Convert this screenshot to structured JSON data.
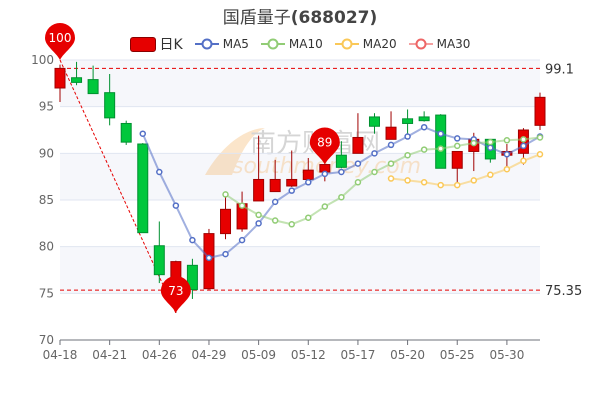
{
  "chart_data": {
    "type": "candlestick",
    "title": "国盾量子",
    "title_code": "(688027)",
    "legend": [
      {
        "name": "日K",
        "color": "#e60000"
      },
      {
        "name": "MA5",
        "color": "#5470c6"
      },
      {
        "name": "MA10",
        "color": "#91cc75"
      },
      {
        "name": "MA20",
        "color": "#fac858"
      },
      {
        "name": "MA30",
        "color": "#ee6666"
      }
    ],
    "legend_position": "top",
    "ylim": [
      70,
      100
    ],
    "yticks": [
      "70",
      "75",
      "80",
      "85",
      "90",
      "95",
      "100"
    ],
    "grid": true,
    "x_tick_labels": [
      "04-18",
      "04-21",
      "04-26",
      "04-29",
      "05-09",
      "05-12",
      "05-17",
      "05-20",
      "05-25",
      "05-30"
    ],
    "x_tick_indices": [
      0,
      3,
      6,
      9,
      12,
      15,
      18,
      21,
      24,
      27
    ],
    "up_color": "#e60000",
    "down_color": "#00c73c",
    "ohlc": [
      [
        97.0,
        99.1,
        95.5,
        99.5
      ],
      [
        98.1,
        97.6,
        97.3,
        99.8
      ],
      [
        97.9,
        96.4,
        96.4,
        99.4
      ],
      [
        96.5,
        93.8,
        93.0,
        98.5
      ],
      [
        93.2,
        91.2,
        90.9,
        93.5
      ],
      [
        91.0,
        81.5,
        81.5,
        91.1
      ],
      [
        80.1,
        77.0,
        76.1,
        82.7
      ],
      [
        76.0,
        78.4,
        72.9,
        78.5
      ],
      [
        78.0,
        75.4,
        74.4,
        78.7
      ],
      [
        75.5,
        81.4,
        75.4,
        81.9
      ],
      [
        81.4,
        84.0,
        80.8,
        85.4
      ],
      [
        81.9,
        84.6,
        81.6,
        85.9
      ],
      [
        84.9,
        87.2,
        84.9,
        91.9
      ],
      [
        85.9,
        87.2,
        85.9,
        89.3
      ],
      [
        86.5,
        87.2,
        86.4,
        90.3
      ],
      [
        87.2,
        88.2,
        87.1,
        89.5
      ],
      [
        88.0,
        88.8,
        87.0,
        88.9
      ],
      [
        89.8,
        88.5,
        88.4,
        91.3
      ],
      [
        90.0,
        91.7,
        90.0,
        94.3
      ],
      [
        93.9,
        92.9,
        92.1,
        94.3
      ],
      [
        91.5,
        92.8,
        91.5,
        94.5
      ],
      [
        93.7,
        93.2,
        92.1,
        94.7
      ],
      [
        93.9,
        93.5,
        93.4,
        94.5
      ],
      [
        94.1,
        88.4,
        88.4,
        94.2
      ],
      [
        88.4,
        90.2,
        86.9,
        90.2
      ],
      [
        90.2,
        91.5,
        88.1,
        92.2
      ],
      [
        91.5,
        89.4,
        89.0,
        91.5
      ],
      [
        89.8,
        90.2,
        88.6,
        91.0
      ],
      [
        90.0,
        92.5,
        88.8,
        92.7
      ],
      [
        93.0,
        96.0,
        92.5,
        96.5
      ]
    ],
    "ma5": [
      null,
      null,
      null,
      null,
      null,
      92.1,
      88.0,
      84.4,
      80.7,
      78.8,
      79.2,
      80.7,
      82.5,
      84.8,
      86.0,
      86.9,
      87.8,
      88.0,
      88.9,
      90.0,
      90.9,
      91.8,
      92.8,
      92.1,
      91.6,
      91.5,
      90.6,
      89.9,
      90.8,
      91.8
    ],
    "ma10": [
      null,
      null,
      null,
      null,
      null,
      null,
      null,
      null,
      null,
      null,
      85.6,
      84.4,
      83.4,
      82.8,
      82.4,
      83.1,
      84.3,
      85.3,
      86.9,
      88.0,
      88.9,
      89.8,
      90.4,
      90.5,
      90.8,
      91.1,
      91.2,
      91.4,
      91.5,
      91.7
    ],
    "ma20": [
      null,
      null,
      null,
      null,
      null,
      null,
      null,
      null,
      null,
      null,
      null,
      null,
      null,
      null,
      null,
      null,
      null,
      null,
      null,
      null,
      87.3,
      87.1,
      86.9,
      86.6,
      86.6,
      87.1,
      87.7,
      88.3,
      89.2,
      89.9
    ],
    "ma30": [],
    "mark_points": [
      {
        "label": "100",
        "index": 0,
        "value": 100
      },
      {
        "label": "73",
        "index": 7,
        "value": 72.9
      },
      {
        "label": "89",
        "index": 16,
        "value": 88.8
      }
    ],
    "mark_lines": [
      {
        "label": "99.1",
        "value": 99.1
      },
      {
        "label": "75.35",
        "value": 75.35
      }
    ]
  },
  "watermark": {
    "cn": "南方财富网",
    "en": "southmoney.com"
  }
}
